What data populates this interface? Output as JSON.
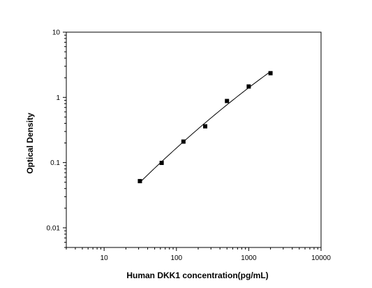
{
  "chart_data": {
    "type": "scatter",
    "xlabel": "Human DKK1 concentration(pg/mL)",
    "ylabel": "Optical Density",
    "x_scale": "log",
    "y_scale": "log",
    "xlim": [
      3,
      10000
    ],
    "ylim": [
      0.005,
      10
    ],
    "x_ticks": [
      {
        "value": 10,
        "label": "10"
      },
      {
        "value": 100,
        "label": "100"
      },
      {
        "value": 1000,
        "label": "1000"
      },
      {
        "value": 10000,
        "label": "10000"
      }
    ],
    "y_ticks": [
      {
        "value": 0.01,
        "label": "0.01"
      },
      {
        "value": 0.1,
        "label": "0.1"
      },
      {
        "value": 1,
        "label": "1"
      },
      {
        "value": 10,
        "label": "10"
      }
    ],
    "grid": false,
    "series": [
      {
        "points": [
          {
            "x": 31.25,
            "y": 0.052
          },
          {
            "x": 62.5,
            "y": 0.099
          },
          {
            "x": 125,
            "y": 0.21
          },
          {
            "x": 250,
            "y": 0.36
          },
          {
            "x": 500,
            "y": 0.88
          },
          {
            "x": 1000,
            "y": 1.47
          },
          {
            "x": 2000,
            "y": 2.35
          }
        ],
        "marker": "square",
        "color": "#000000",
        "fit_curve": true
      }
    ]
  }
}
